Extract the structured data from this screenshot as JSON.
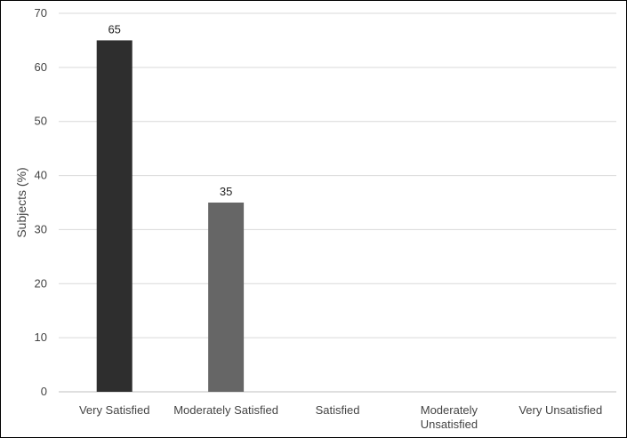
{
  "chart_data": {
    "type": "bar",
    "title": "",
    "xlabel": "",
    "ylabel": "Subjects (%)",
    "categories": [
      [
        "Very Satisfied"
      ],
      [
        "Moderately Satisfied"
      ],
      [
        "Satisfied"
      ],
      [
        "Moderately",
        "Unsatisfied"
      ],
      [
        "Very Unsatisfied"
      ]
    ],
    "values": [
      65,
      35,
      null,
      null,
      null
    ],
    "data_labels": [
      "65",
      "35",
      "",
      "",
      ""
    ],
    "bar_colors": [
      "#2e2e2e",
      "#666666",
      "#999999",
      "#bbbbbb",
      "#dddddd"
    ],
    "ylim": [
      0,
      70
    ],
    "yticks": [
      0,
      10,
      20,
      30,
      40,
      50,
      60,
      70
    ],
    "grid": true,
    "gridline_color": "#d9d9d9",
    "axis_color": "#bfbfbf",
    "legend": "none"
  }
}
